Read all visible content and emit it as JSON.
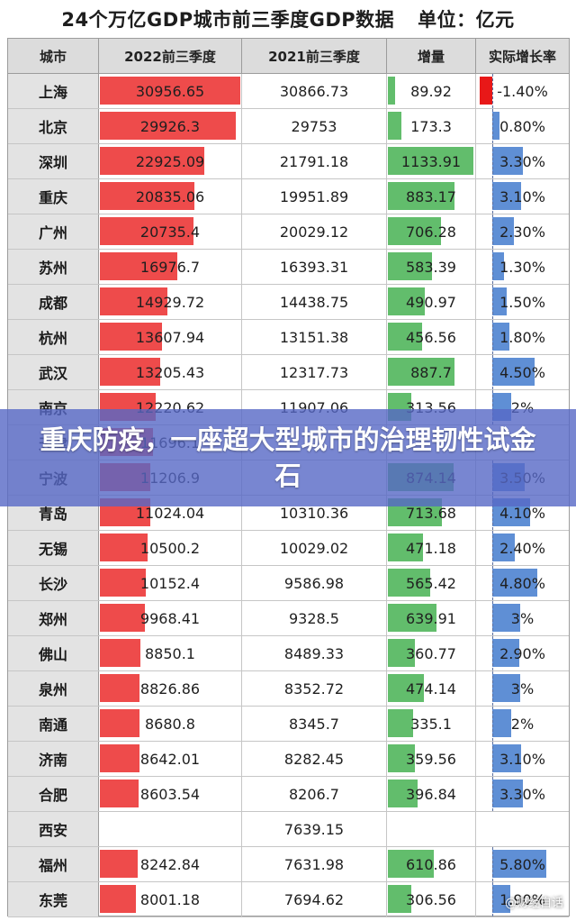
{
  "title": {
    "main": "24个万亿GDP城市前三季度GDP数据",
    "unit": "单位：亿元"
  },
  "headers": [
    "城市",
    "2022前三季度",
    "2021前三季度",
    "增量",
    "实际增长率"
  ],
  "banner": "重庆防疫，一座超大型城市的治理韧性试金石",
  "watermark": "@财经自话",
  "colors": {
    "gdp_bar": "#ee4b4b",
    "increment_bar": "#62bd6c",
    "growth_positive_bar": "#5f8fd5",
    "growth_negative_bar": "#e81818",
    "header_bg": "#dcdcdc",
    "banner_bg": "#5668c6"
  },
  "chart_data": {
    "type": "table",
    "columns": [
      "城市",
      "2022前三季度",
      "2021前三季度",
      "增量",
      "实际增长率"
    ],
    "rows": [
      {
        "city": "上海",
        "gdp2022": "30956.65",
        "gdp2021": "30866.73",
        "increment": "89.92",
        "growth": "-1.40%"
      },
      {
        "city": "北京",
        "gdp2022": "29926.3",
        "gdp2021": "29753",
        "increment": "173.3",
        "growth": "0.80%"
      },
      {
        "city": "深圳",
        "gdp2022": "22925.09",
        "gdp2021": "21791.18",
        "increment": "1133.91",
        "growth": "3.30%"
      },
      {
        "city": "重庆",
        "gdp2022": "20835.06",
        "gdp2021": "19951.89",
        "increment": "883.17",
        "growth": "3.10%"
      },
      {
        "city": "广州",
        "gdp2022": "20735.4",
        "gdp2021": "20029.12",
        "increment": "706.28",
        "growth": "2.30%"
      },
      {
        "city": "苏州",
        "gdp2022": "16976.7",
        "gdp2021": "16393.31",
        "increment": "583.39",
        "growth": "1.30%"
      },
      {
        "city": "成都",
        "gdp2022": "14929.72",
        "gdp2021": "14438.75",
        "increment": "490.97",
        "growth": "1.50%"
      },
      {
        "city": "杭州",
        "gdp2022": "13607.94",
        "gdp2021": "13151.38",
        "increment": "456.56",
        "growth": "1.80%"
      },
      {
        "city": "武汉",
        "gdp2022": "13205.43",
        "gdp2021": "12317.73",
        "increment": "887.7",
        "growth": "4.50%"
      },
      {
        "city": "南京",
        "gdp2022": "12220.62",
        "gdp2021": "11907.06",
        "increment": "313.56",
        "growth": "2%"
      },
      {
        "city": "天津",
        "gdp2022": "11696.1",
        "gdp2021": "",
        "increment": "",
        "growth": ""
      },
      {
        "city": "宁波",
        "gdp2022": "11206.9",
        "gdp2021": "",
        "increment": "874.14",
        "growth": "3.50%"
      },
      {
        "city": "青岛",
        "gdp2022": "11024.04",
        "gdp2021": "10310.36",
        "increment": "713.68",
        "growth": "4.10%"
      },
      {
        "city": "无锡",
        "gdp2022": "10500.2",
        "gdp2021": "10029.02",
        "increment": "471.18",
        "growth": "2.40%"
      },
      {
        "city": "长沙",
        "gdp2022": "10152.4",
        "gdp2021": "9586.98",
        "increment": "565.42",
        "growth": "4.80%"
      },
      {
        "city": "郑州",
        "gdp2022": "9968.41",
        "gdp2021": "9328.5",
        "increment": "639.91",
        "growth": "3%"
      },
      {
        "city": "佛山",
        "gdp2022": "8850.1",
        "gdp2021": "8489.33",
        "increment": "360.77",
        "growth": "2.90%"
      },
      {
        "city": "泉州",
        "gdp2022": "8826.86",
        "gdp2021": "8352.72",
        "increment": "474.14",
        "growth": "3%"
      },
      {
        "city": "南通",
        "gdp2022": "8680.8",
        "gdp2021": "8345.7",
        "increment": "335.1",
        "growth": "2%"
      },
      {
        "city": "济南",
        "gdp2022": "8642.01",
        "gdp2021": "8282.45",
        "increment": "359.56",
        "growth": "3.10%"
      },
      {
        "city": "合肥",
        "gdp2022": "8603.54",
        "gdp2021": "8206.7",
        "increment": "396.84",
        "growth": "3.30%"
      },
      {
        "city": "西安",
        "gdp2022": "",
        "gdp2021": "7639.15",
        "increment": "",
        "growth": ""
      },
      {
        "city": "福州",
        "gdp2022": "8242.84",
        "gdp2021": "7631.98",
        "increment": "610.86",
        "growth": "5.80%"
      },
      {
        "city": "东莞",
        "gdp2022": "8001.18",
        "gdp2021": "7694.62",
        "increment": "306.56",
        "growth": "1.90%"
      }
    ],
    "bar_scales": {
      "gdp2022_max": 30956.65,
      "increment_max": 1133.91,
      "growth_max": 5.8
    }
  }
}
